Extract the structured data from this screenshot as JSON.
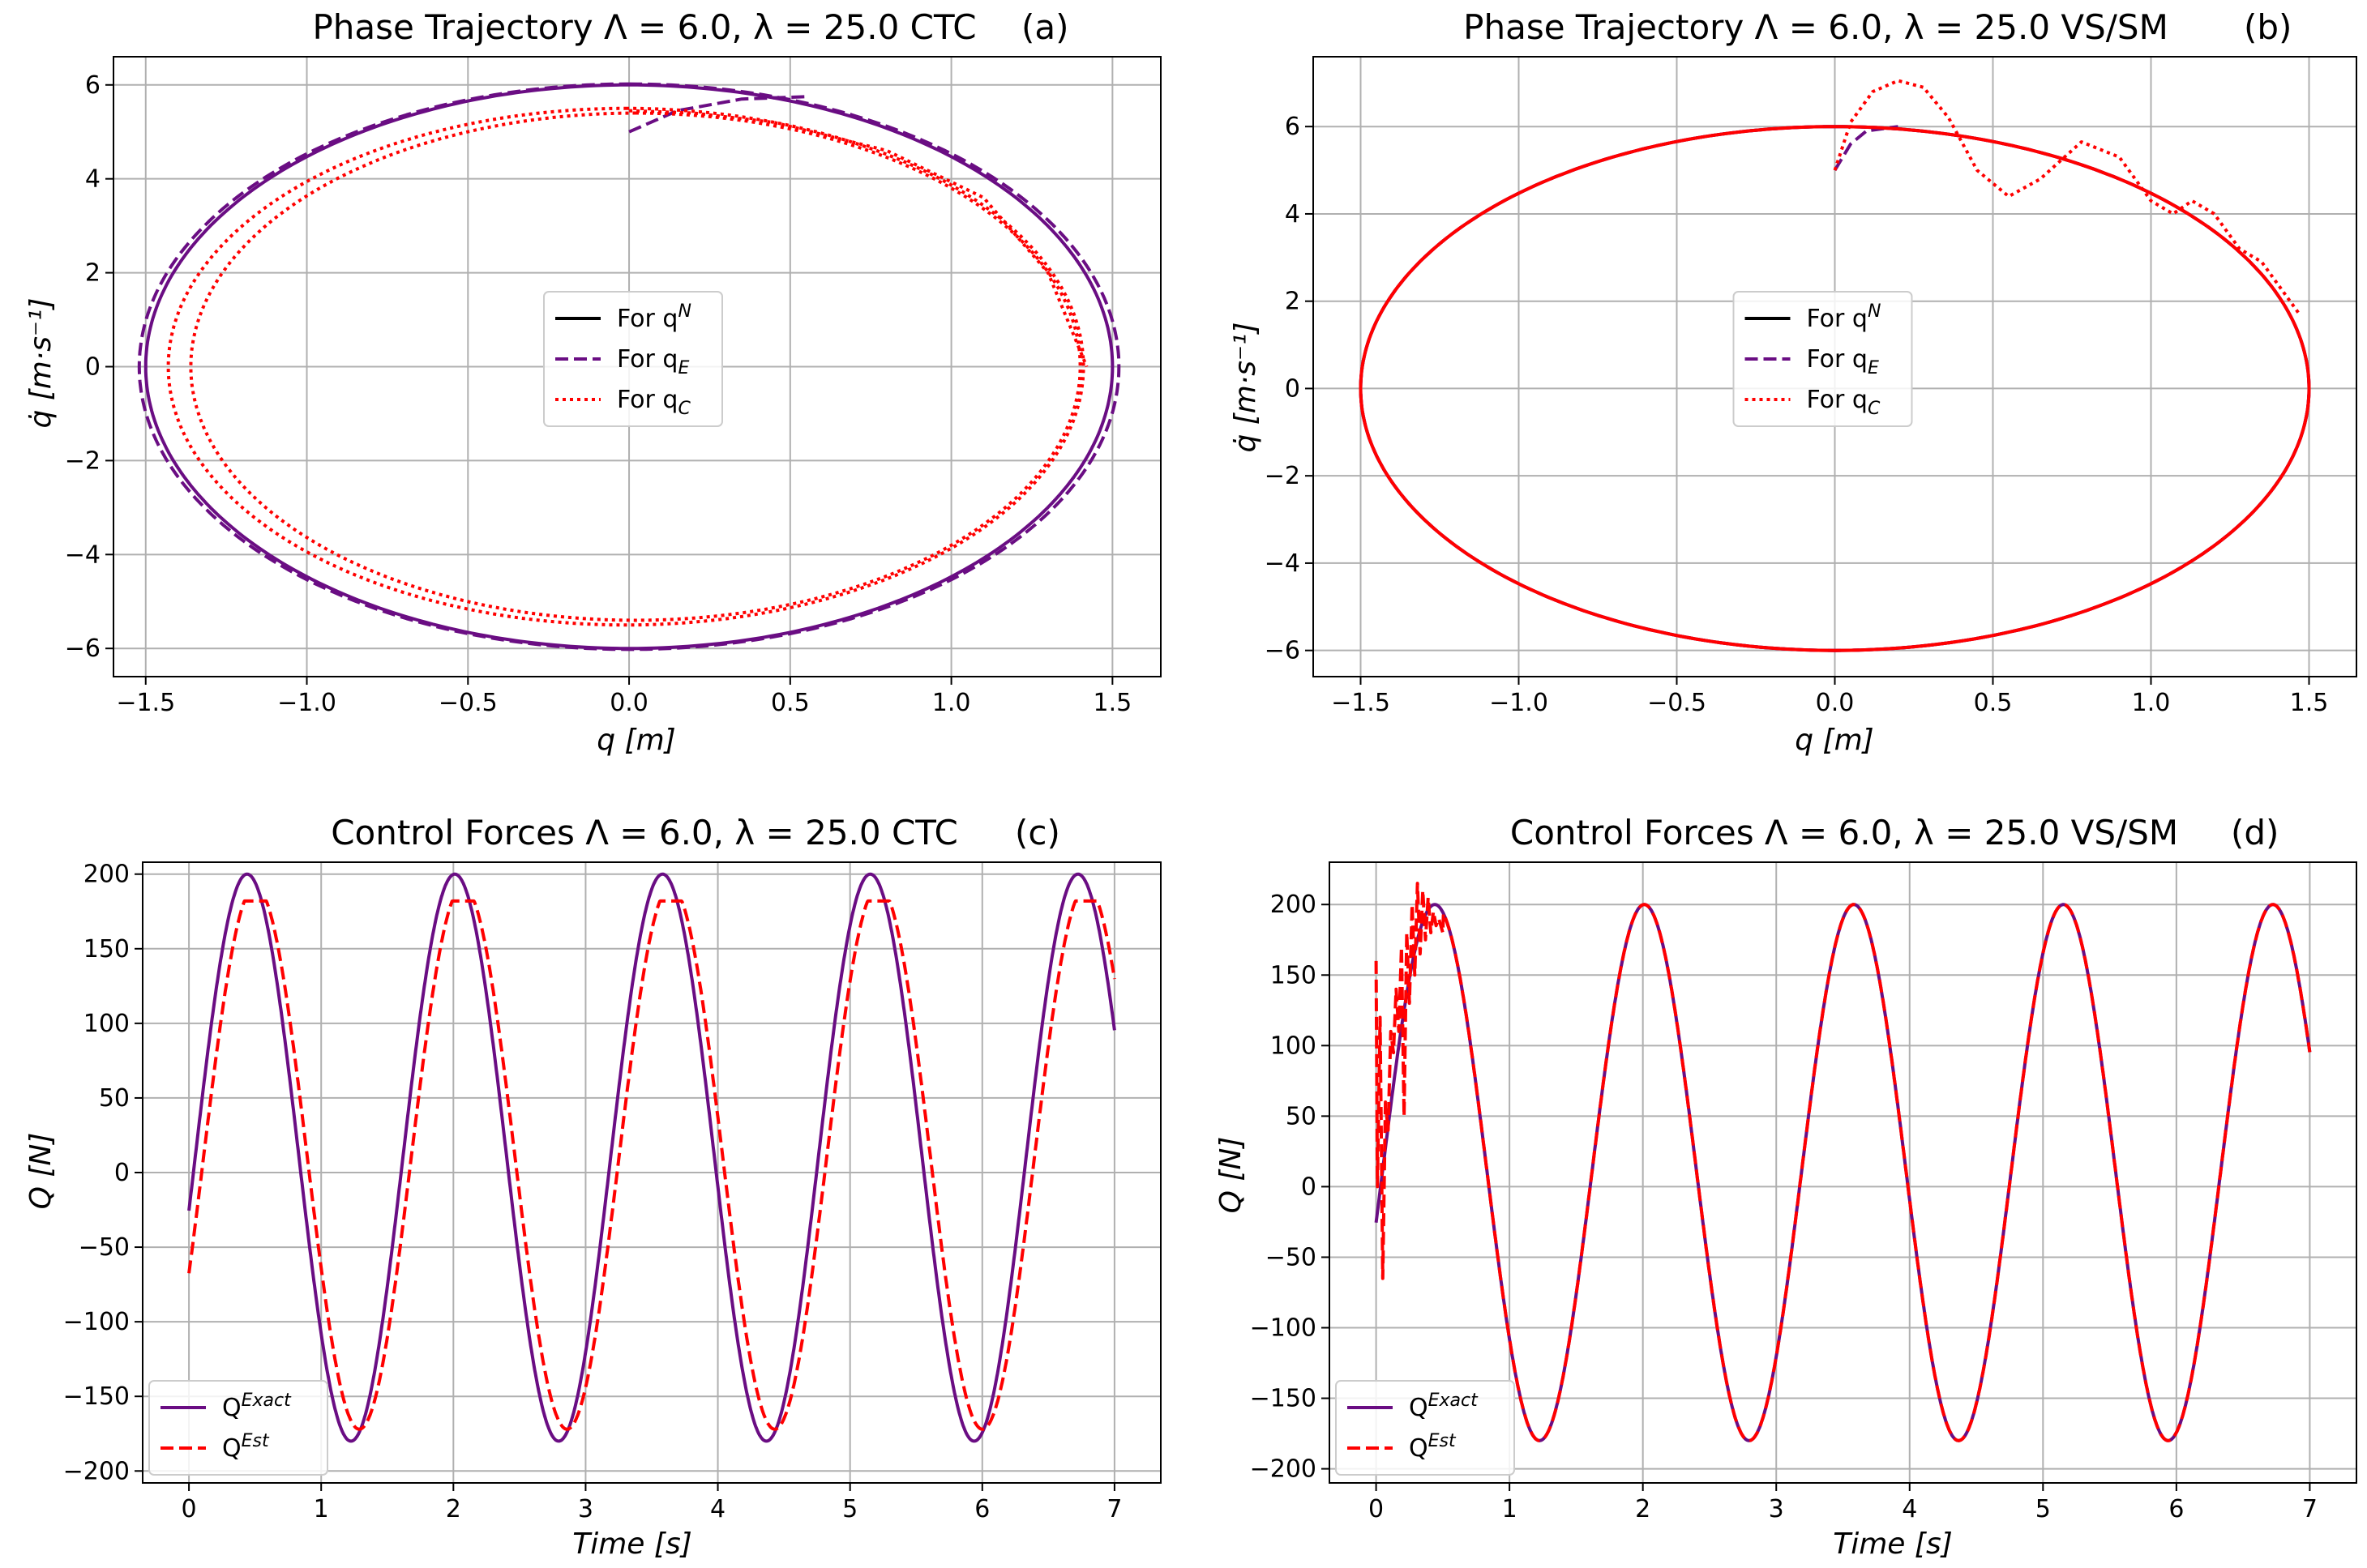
{
  "colors": {
    "exact": "#6a0d83",
    "est": "#ff0000",
    "black": "#000000",
    "grid": "#b0b0b0"
  },
  "chart_data": [
    {
      "id": "a",
      "type": "line",
      "title": "Phase Trajectory Λ = 6.0, λ = 25.0 CTC",
      "panel": "(a)",
      "xlabel": "q [m]",
      "ylabel": "q̇ [m·s⁻¹]",
      "xlim": [
        -1.6,
        1.65
      ],
      "ylim": [
        -6.6,
        6.6
      ],
      "xticks": [
        -1.5,
        -1.0,
        -0.5,
        0.0,
        0.5,
        1.0,
        1.5
      ],
      "xtick_labels": [
        "−1.5",
        "−1.0",
        "−0.5",
        "0.0",
        "0.5",
        "1.0",
        "1.5"
      ],
      "yticks": [
        -6,
        -4,
        -2,
        0,
        2,
        4,
        6
      ],
      "ytick_labels": [
        "−6",
        "−4",
        "−2",
        "0",
        "2",
        "4",
        "6"
      ],
      "grid": true,
      "legend_position": "center",
      "legend": [
        {
          "label": "For q",
          "sup": "N",
          "sub": "",
          "style": "solid",
          "color": "black"
        },
        {
          "label": "For q",
          "sup": "",
          "sub": "E",
          "style": "dashed",
          "color": "exact"
        },
        {
          "label": "For q",
          "sup": "",
          "sub": "C",
          "style": "dotted",
          "color": "est"
        }
      ],
      "series": [
        {
          "name": "q^N ellipse",
          "style": "solid",
          "color": "exact",
          "ellipse": {
            "a": 1.5,
            "b": 6.0,
            "cx": 0.0
          }
        },
        {
          "name": "q_E",
          "style": "dashed",
          "color": "exact",
          "ellipse": {
            "a": 1.52,
            "b": 6.02,
            "cx": 0.0
          },
          "start": {
            "x": [
              0.0,
              0.15,
              0.35,
              0.55
            ],
            "y": [
              5.0,
              5.45,
              5.7,
              5.75
            ]
          }
        },
        {
          "name": "q_C outer",
          "style": "dotted",
          "color": "est",
          "ellipse": {
            "a": 1.42,
            "b": 5.5,
            "cx": -0.01
          },
          "start": {
            "x": [
              0.0,
              0.2,
              0.45,
              0.8,
              1.1,
              1.3,
              1.42
            ],
            "y": [
              5.45,
              5.4,
              5.2,
              4.6,
              3.6,
              2.0,
              0.0
            ]
          }
        },
        {
          "name": "q_C inner",
          "style": "dotted",
          "color": "est",
          "ellipse": {
            "a": 1.38,
            "b": 5.4,
            "cx": 0.02
          }
        }
      ]
    },
    {
      "id": "b",
      "type": "line",
      "title": "Phase Trajectory Λ = 6.0, λ = 25.0 VS/SM",
      "panel": "(b)",
      "xlabel": "q [m]",
      "ylabel": "q̇ [m·s⁻¹]",
      "xlim": [
        -1.65,
        1.65
      ],
      "ylim": [
        -6.6,
        7.6
      ],
      "xticks": [
        -1.5,
        -1.0,
        -0.5,
        0.0,
        0.5,
        1.0,
        1.5
      ],
      "xtick_labels": [
        "−1.5",
        "−1.0",
        "−0.5",
        "0.0",
        "0.5",
        "1.0",
        "1.5"
      ],
      "yticks": [
        -6,
        -4,
        -2,
        0,
        2,
        4,
        6
      ],
      "ytick_labels": [
        "−6",
        "−4",
        "−2",
        "0",
        "2",
        "4",
        "6"
      ],
      "grid": true,
      "legend_position": "center",
      "legend": [
        {
          "label": "For q",
          "sup": "N",
          "sub": "",
          "style": "solid",
          "color": "black"
        },
        {
          "label": "For q",
          "sup": "",
          "sub": "E",
          "style": "dashed",
          "color": "exact"
        },
        {
          "label": "For q",
          "sup": "",
          "sub": "C",
          "style": "dotted",
          "color": "est"
        }
      ],
      "series": [
        {
          "name": "q^N ellipse",
          "style": "solid",
          "color": "exact",
          "ellipse": {
            "a": 1.5,
            "b": 6.0,
            "cx": 0.0
          }
        },
        {
          "name": "q_E",
          "style": "dashed",
          "color": "exact",
          "ellipse": {
            "a": 1.5,
            "b": 6.0,
            "cx": 0.0
          },
          "start": {
            "x": [
              0.0,
              0.05,
              0.1,
              0.2
            ],
            "y": [
              5.0,
              5.6,
              5.9,
              6.0
            ]
          }
        },
        {
          "name": "q_C",
          "style": "solid",
          "color": "est",
          "ellipse": {
            "a": 1.5,
            "b": 6.0,
            "cx": 0.0
          }
        },
        {
          "name": "q_C transient",
          "style": "dotted",
          "color": "est",
          "path": {
            "x": [
              0.0,
              0.05,
              0.12,
              0.2,
              0.28,
              0.36,
              0.45,
              0.55,
              0.65,
              0.78,
              0.9,
              1.0,
              1.07,
              1.13,
              1.2,
              1.28,
              1.35,
              1.42,
              1.47
            ],
            "y": [
              5.0,
              6.1,
              6.8,
              7.05,
              6.9,
              6.2,
              5.0,
              4.4,
              4.8,
              5.65,
              5.3,
              4.3,
              4.0,
              4.3,
              4.0,
              3.2,
              2.9,
              2.2,
              1.7
            ]
          }
        }
      ]
    },
    {
      "id": "c",
      "type": "line",
      "title": "Control Forces Λ = 6.0, λ = 25.0 CTC",
      "panel": "(c)",
      "xlabel": "Time [s]",
      "ylabel": "Q [N]",
      "xlim": [
        -0.35,
        7.35
      ],
      "ylim": [
        -208,
        208
      ],
      "xticks": [
        0,
        1,
        2,
        3,
        4,
        5,
        6,
        7
      ],
      "xtick_labels": [
        "0",
        "1",
        "2",
        "3",
        "4",
        "5",
        "6",
        "7"
      ],
      "yticks": [
        -200,
        -150,
        -100,
        -50,
        0,
        50,
        100,
        150,
        200
      ],
      "ytick_labels": [
        "−200",
        "−150",
        "−100",
        "−50",
        "0",
        "50",
        "100",
        "150",
        "200"
      ],
      "grid": true,
      "legend_position": "lower-left",
      "legend": [
        {
          "label": "Q",
          "sup": "Exact",
          "sub": "",
          "style": "solid",
          "color": "exact"
        },
        {
          "label": "Q",
          "sup": "Est",
          "sub": "",
          "style": "dashed",
          "color": "est"
        }
      ],
      "series": [
        {
          "name": "Q^Exact",
          "style": "solid",
          "color": "exact",
          "sine": {
            "amp": 190,
            "period": 1.571,
            "phase": 0.047,
            "t0": 0,
            "t1": 7
          }
        },
        {
          "name": "Q^Est",
          "style": "dashed",
          "color": "est",
          "sine": {
            "amp": 182,
            "period": 1.571,
            "phase": 0.11,
            "t0": 0,
            "t1": 7,
            "clip": 178
          }
        }
      ]
    },
    {
      "id": "d",
      "type": "line",
      "title": "Control Forces Λ = 6.0, λ = 25.0 VS/SM",
      "panel": "(d)",
      "xlabel": "Time [s]",
      "ylabel": "Q [N]",
      "xlim": [
        -0.35,
        7.35
      ],
      "ylim": [
        -210,
        230
      ],
      "xticks": [
        0,
        1,
        2,
        3,
        4,
        5,
        6,
        7
      ],
      "xtick_labels": [
        "0",
        "1",
        "2",
        "3",
        "4",
        "5",
        "6",
        "7"
      ],
      "yticks": [
        -200,
        -150,
        -100,
        -50,
        0,
        50,
        100,
        150,
        200
      ],
      "ytick_labels": [
        "−200",
        "−150",
        "−100",
        "−50",
        "0",
        "50",
        "100",
        "150",
        "200"
      ],
      "grid": true,
      "legend_position": "lower-left",
      "legend": [
        {
          "label": "Q",
          "sup": "Exact",
          "sub": "",
          "style": "solid",
          "color": "exact"
        },
        {
          "label": "Q",
          "sup": "Est",
          "sub": "",
          "style": "dashed",
          "color": "est"
        }
      ],
      "series": [
        {
          "name": "Q^Exact",
          "style": "solid",
          "color": "exact",
          "sine": {
            "amp": 190,
            "period": 1.571,
            "phase": 0.047,
            "t0": 0,
            "t1": 7
          }
        },
        {
          "name": "Q^Est",
          "style": "dashed",
          "color": "est",
          "sine": {
            "amp": 190,
            "period": 1.571,
            "phase": 0.047,
            "t0": 0,
            "t1": 7
          },
          "transient": {
            "t": [
              0.0,
              0.01,
              0.03,
              0.05,
              0.07,
              0.09,
              0.11,
              0.13,
              0.15,
              0.17,
              0.19,
              0.21,
              0.23,
              0.25,
              0.27,
              0.29,
              0.31,
              0.33,
              0.35,
              0.37,
              0.39,
              0.41,
              0.43,
              0.45,
              0.47,
              0.5
            ],
            "y": [
              160,
              0,
              120,
              -65,
              60,
              40,
              110,
              95,
              140,
              110,
              170,
              50,
              180,
              130,
              200,
              150,
              215,
              165,
              210,
              175,
              205,
              180,
              195,
              185,
              190,
              180
            ]
          }
        }
      ]
    }
  ]
}
